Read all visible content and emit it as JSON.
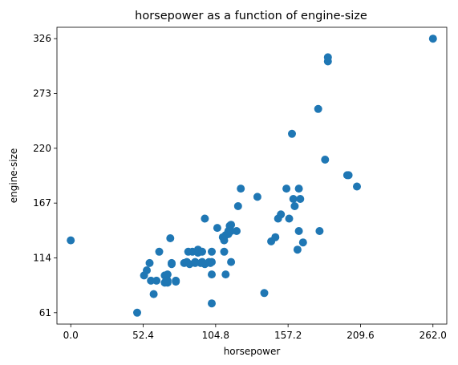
{
  "chart_data": {
    "type": "scatter",
    "title": "horsepower as a function of engine-size",
    "xlabel": "horsepower",
    "ylabel": "engine-size",
    "xlim": [
      -10,
      272
    ],
    "ylim": [
      50,
      337
    ],
    "xticks": [
      0.0,
      52.4,
      104.8,
      157.2,
      209.6,
      262.0
    ],
    "xtick_labels": [
      "0.0",
      "52.4",
      "104.8",
      "157.2",
      "209.6",
      "262.0"
    ],
    "yticks": [
      61,
      114,
      167,
      220,
      273,
      326
    ],
    "ytick_labels": [
      "61",
      "114",
      "167",
      "220",
      "273",
      "326"
    ],
    "grid": false,
    "marker_color": "#1f77b4",
    "points": [
      [
        0,
        131
      ],
      [
        48,
        61
      ],
      [
        53,
        97
      ],
      [
        55,
        102
      ],
      [
        57,
        109
      ],
      [
        58,
        92
      ],
      [
        60,
        79
      ],
      [
        62,
        92
      ],
      [
        64,
        120
      ],
      [
        68,
        90
      ],
      [
        68,
        97
      ],
      [
        69,
        92
      ],
      [
        69,
        97
      ],
      [
        70,
        90
      ],
      [
        70,
        98
      ],
      [
        70,
        92
      ],
      [
        72,
        133
      ],
      [
        73,
        109
      ],
      [
        73,
        108
      ],
      [
        76,
        92
      ],
      [
        76,
        91
      ],
      [
        82,
        109
      ],
      [
        84,
        110
      ],
      [
        85,
        120
      ],
      [
        86,
        108
      ],
      [
        88,
        120
      ],
      [
        90,
        110
      ],
      [
        90,
        109
      ],
      [
        92,
        119
      ],
      [
        92,
        122
      ],
      [
        94,
        109
      ],
      [
        95,
        120
      ],
      [
        95,
        110
      ],
      [
        97,
        152
      ],
      [
        97,
        108
      ],
      [
        100,
        110
      ],
      [
        101,
        109
      ],
      [
        102,
        120
      ],
      [
        102,
        70
      ],
      [
        102,
        98
      ],
      [
        102,
        110
      ],
      [
        106,
        143
      ],
      [
        110,
        134
      ],
      [
        111,
        120
      ],
      [
        111,
        131
      ],
      [
        112,
        136
      ],
      [
        112,
        98
      ],
      [
        114,
        137
      ],
      [
        114,
        140
      ],
      [
        115,
        145
      ],
      [
        116,
        146
      ],
      [
        116,
        110
      ],
      [
        116,
        140
      ],
      [
        120,
        140
      ],
      [
        121,
        164
      ],
      [
        123,
        181
      ],
      [
        135,
        173
      ],
      [
        140,
        80
      ],
      [
        145,
        130
      ],
      [
        148,
        134
      ],
      [
        150,
        152
      ],
      [
        152,
        156
      ],
      [
        156,
        181
      ],
      [
        158,
        152
      ],
      [
        161,
        171
      ],
      [
        162,
        164
      ],
      [
        164,
        122
      ],
      [
        165,
        181
      ],
      [
        165,
        140
      ],
      [
        166,
        171
      ],
      [
        168,
        129
      ],
      [
        179,
        258
      ],
      [
        180,
        140
      ],
      [
        184,
        209
      ],
      [
        186,
        304
      ],
      [
        186,
        308
      ],
      [
        200,
        194
      ],
      [
        201,
        194
      ],
      [
        207,
        183
      ],
      [
        262,
        326
      ],
      [
        160,
        234
      ]
    ]
  }
}
